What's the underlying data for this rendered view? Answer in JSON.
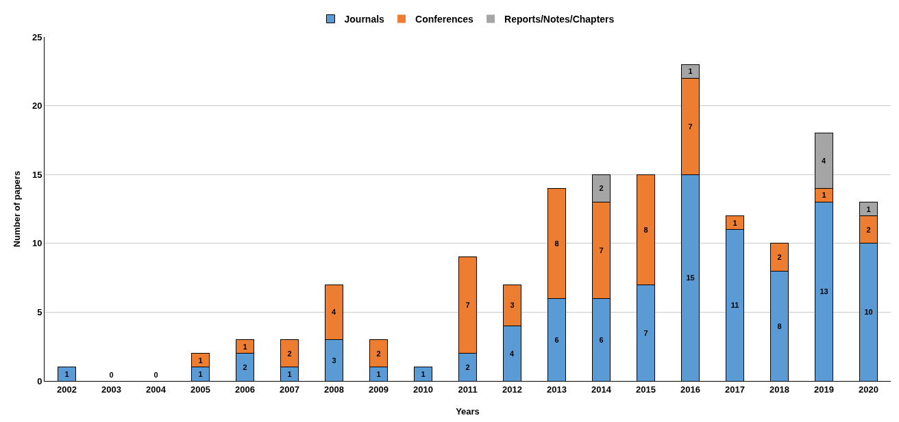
{
  "chart_data": {
    "type": "bar",
    "stacked": true,
    "xlabel": "Years",
    "ylabel": "Number of papers",
    "categories": [
      "2002",
      "2003",
      "2004",
      "2005",
      "2006",
      "2007",
      "2008",
      "2009",
      "2010",
      "2011",
      "2012",
      "2013",
      "2014",
      "2015",
      "2016",
      "2017",
      "2018",
      "2019",
      "2020"
    ],
    "series": [
      {
        "name": "Journals",
        "color": "#5b9bd5",
        "values": [
          1,
          0,
          0,
          1,
          2,
          1,
          3,
          1,
          1,
          2,
          4,
          6,
          6,
          7,
          15,
          11,
          8,
          13,
          10
        ],
        "value_labels": [
          "1",
          "0",
          "0",
          "1",
          "2",
          "1",
          "3",
          "1",
          "1",
          "2",
          "4",
          "6",
          "6",
          "7",
          "15",
          "11",
          "8",
          "13",
          "10"
        ]
      },
      {
        "name": "Conferences",
        "color": "#ed7d31",
        "values": [
          0,
          0,
          0,
          1,
          1,
          2,
          4,
          2,
          0,
          7,
          3,
          8,
          7,
          8,
          7,
          1,
          2,
          1,
          2
        ],
        "value_labels": [
          null,
          null,
          null,
          "1",
          "1",
          "2",
          "4",
          "2",
          null,
          "7",
          "3",
          "8",
          "7",
          "8",
          "7",
          "1",
          "2",
          "1",
          "2"
        ]
      },
      {
        "name": "Reports/Notes/Chapters",
        "color": "#a5a5a5",
        "values": [
          0,
          0,
          0,
          0,
          0,
          0,
          0,
          0,
          0,
          0,
          0,
          0,
          2,
          0,
          1,
          0,
          0,
          4,
          1
        ],
        "value_labels": [
          null,
          null,
          null,
          null,
          null,
          null,
          null,
          null,
          null,
          null,
          null,
          null,
          "2",
          null,
          "1",
          null,
          null,
          "4",
          "1"
        ]
      }
    ],
    "ylim": [
      0,
      25
    ],
    "yticks": [
      0,
      5,
      10,
      15,
      20,
      25
    ],
    "grid": "y",
    "legend": "top"
  }
}
